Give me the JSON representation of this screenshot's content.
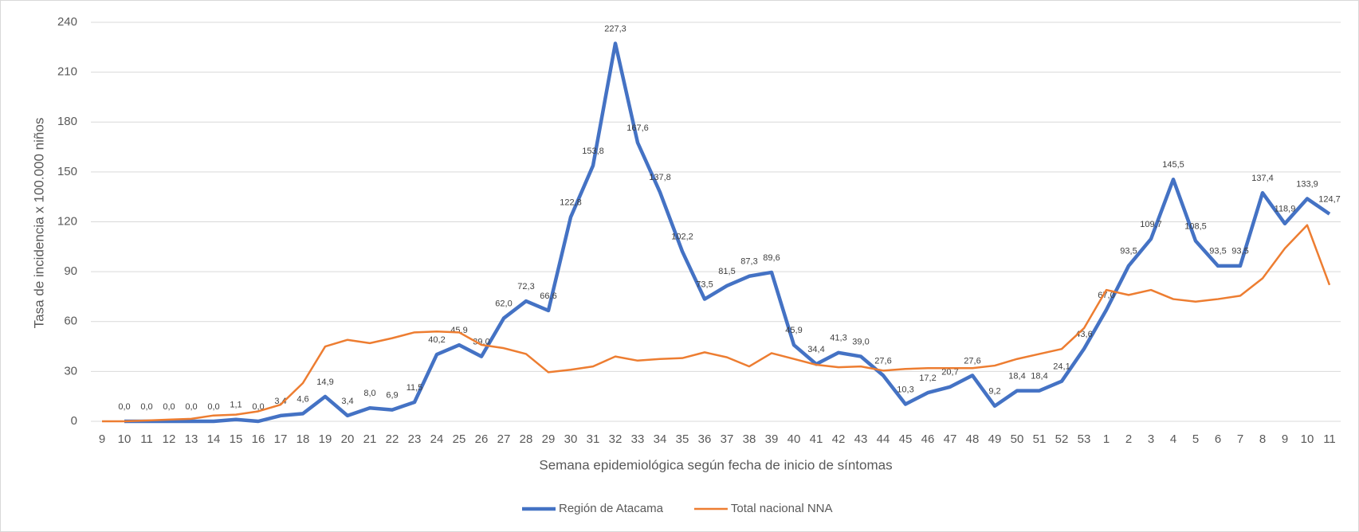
{
  "chart_data": {
    "type": "line",
    "x_label": "Semana epidemiológica según fecha de inicio de síntomas",
    "y_label": "Tasa de incidencia x 100.000 niños",
    "categories": [
      "9",
      "10",
      "11",
      "12",
      "13",
      "14",
      "15",
      "16",
      "17",
      "18",
      "19",
      "20",
      "21",
      "22",
      "23",
      "24",
      "25",
      "26",
      "27",
      "28",
      "29",
      "30",
      "31",
      "32",
      "33",
      "34",
      "35",
      "36",
      "37",
      "38",
      "39",
      "40",
      "41",
      "42",
      "43",
      "44",
      "45",
      "46",
      "47",
      "48",
      "49",
      "50",
      "51",
      "52",
      "53",
      "1",
      "2",
      "3",
      "4",
      "5",
      "6",
      "7",
      "8",
      "9",
      "10",
      "11"
    ],
    "series": [
      {
        "name": "Región de Atacama",
        "color": "#4472c4",
        "values": [
          null,
          0.0,
          0.0,
          0.0,
          0.0,
          0.0,
          1.1,
          0.0,
          3.4,
          4.6,
          14.9,
          3.4,
          8.0,
          6.9,
          11.5,
          40.2,
          45.9,
          39.0,
          62.0,
          72.3,
          66.6,
          122.8,
          153.8,
          227.3,
          167.6,
          137.8,
          102.2,
          73.5,
          81.5,
          87.3,
          89.6,
          45.9,
          34.4,
          41.3,
          39.0,
          27.6,
          10.3,
          17.2,
          20.7,
          27.6,
          9.2,
          18.4,
          18.4,
          24.1,
          43.6,
          67.0,
          93.5,
          109.7,
          145.5,
          108.5,
          93.5,
          93.5,
          137.4,
          118.9,
          133.9,
          124.7
        ],
        "value_labels": [
          null,
          "0,0",
          "0,0",
          "0,0",
          "0,0",
          "0,0",
          "1,1",
          "0,0",
          "3,4",
          "4,6",
          "14,9",
          "3,4",
          "8,0",
          "6,9",
          "11,5",
          "40,2",
          "45,9",
          "39,0",
          "62,0",
          "72,3",
          "66,6",
          "122,8",
          "153,8",
          "227,3",
          "167,6",
          "137,8",
          "102,2",
          "73,5",
          "81,5",
          "87,3",
          "89,6",
          "45,9",
          "34,4",
          "41,3",
          "39,0",
          "27,6",
          "10,3",
          "17,2",
          "20,7",
          "27,6",
          "9,2",
          "18,4",
          "18,4",
          "24,1",
          "43,6",
          "67,0",
          "93,5",
          "109,7",
          "145,5",
          "108,5",
          "93,5",
          "93,5",
          "137,4",
          "118,9",
          "133,9",
          "124,7"
        ]
      },
      {
        "name": "Total nacional NNA",
        "color": "#ed7d31",
        "values": [
          0,
          0,
          0.5,
          1,
          1.5,
          3.5,
          4,
          6,
          10,
          23,
          45,
          49,
          47,
          50,
          53.5,
          54,
          53.5,
          46,
          44,
          40.5,
          29.5,
          31,
          33,
          39,
          36.5,
          37.5,
          38,
          41.5,
          38.5,
          33,
          41,
          37.5,
          34,
          32.5,
          33,
          30.5,
          31.5,
          32,
          32,
          32,
          33.5,
          37.5,
          40.5,
          43.5,
          56,
          79,
          76,
          79,
          73.5,
          72,
          73.5,
          75.5,
          86,
          104,
          118,
          82
        ]
      }
    ],
    "ylim": [
      0,
      240
    ],
    "yticks": [
      0,
      30,
      60,
      90,
      120,
      150,
      180,
      210,
      240
    ],
    "grid": true,
    "legend": "bottom"
  }
}
